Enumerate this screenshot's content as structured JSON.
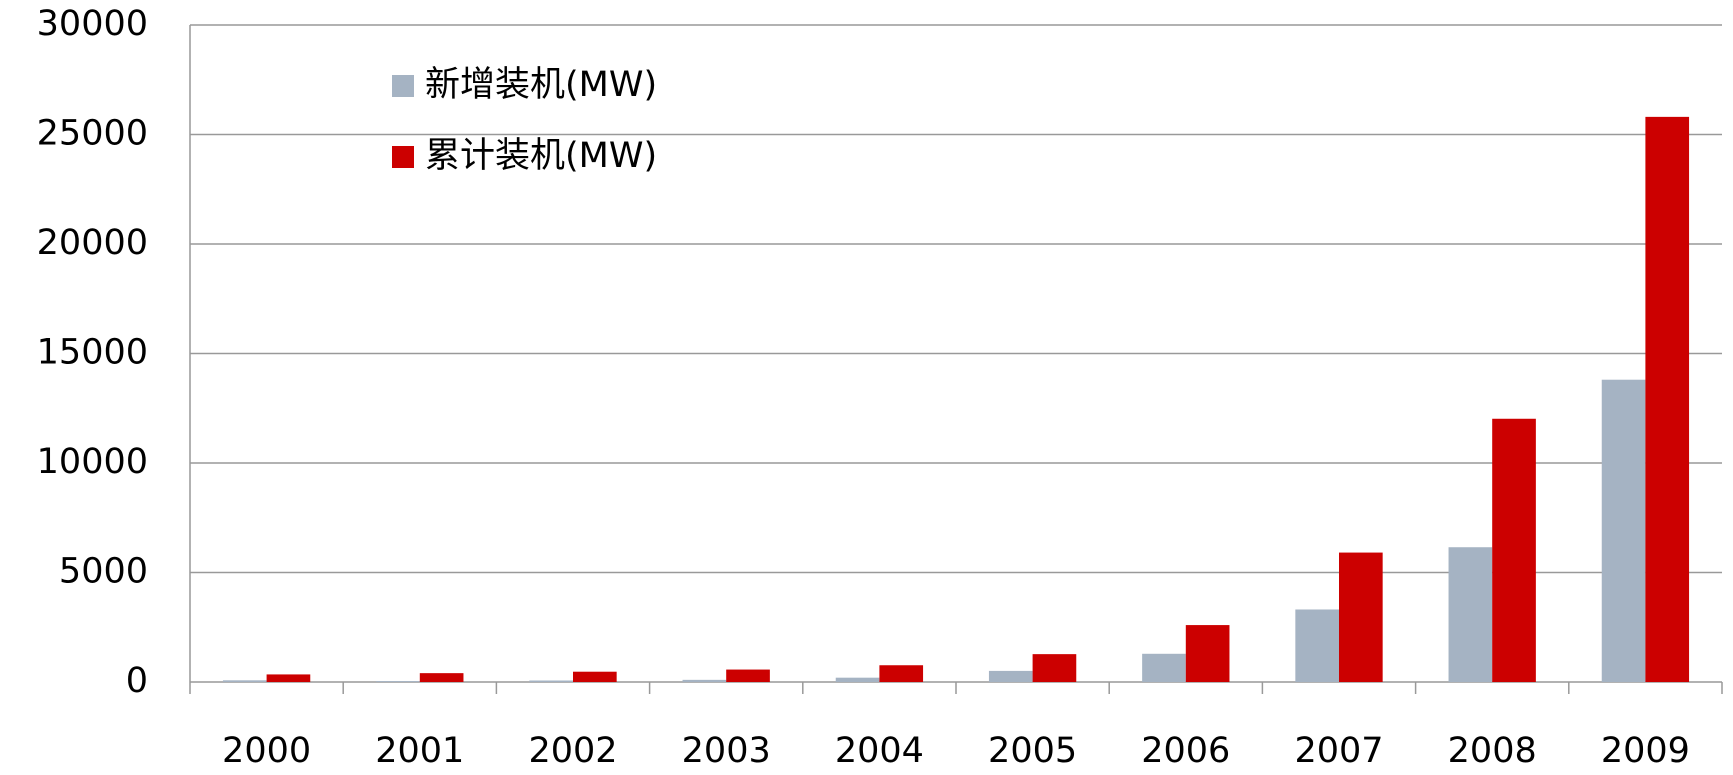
{
  "chart_data": {
    "type": "bar",
    "categories": [
      "2000",
      "2001",
      "2002",
      "2003",
      "2004",
      "2005",
      "2006",
      "2007",
      "2008",
      "2009"
    ],
    "series": [
      {
        "name": "新增装机(MW)",
        "color": "#a5b3c3",
        "values": [
          77,
          42,
          68,
          98,
          197,
          507,
          1288,
          3311,
          6154,
          13803
        ]
      },
      {
        "name": "累计装机(MW)",
        "color": "#cc0000",
        "values": [
          346,
          404,
          470,
          568,
          765,
          1272,
          2599,
          5910,
          12020,
          25805
        ]
      }
    ],
    "ylim": [
      0,
      30000
    ],
    "yticks": [
      0,
      5000,
      10000,
      15000,
      20000,
      25000,
      30000
    ],
    "grid": true,
    "legend": "top-left"
  }
}
